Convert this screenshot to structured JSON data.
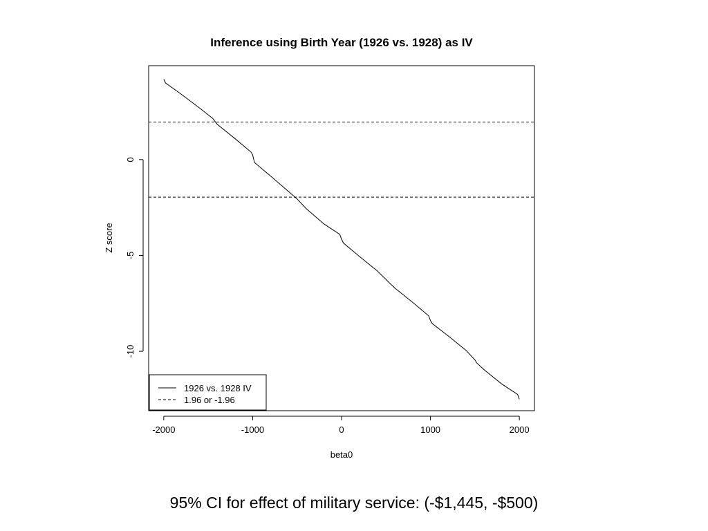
{
  "chart_data": {
    "type": "line",
    "title": "Inference using Birth Year (1926 vs. 1928) as IV",
    "xlabel": "beta0",
    "ylabel": "Z score",
    "xlim": [
      -2170,
      2170
    ],
    "ylim": [
      -13.1,
      4.9
    ],
    "x_ticks": [
      {
        "value": -2000,
        "label": "-2000"
      },
      {
        "value": -1000,
        "label": "-1000"
      },
      {
        "value": 0,
        "label": "0"
      },
      {
        "value": 1000,
        "label": "1000"
      },
      {
        "value": 2000,
        "label": "2000"
      }
    ],
    "y_ticks": [
      {
        "value": 0,
        "label": "0"
      },
      {
        "value": -5,
        "label": "-5"
      },
      {
        "value": -10,
        "label": "-10"
      }
    ],
    "grid": false,
    "series": [
      {
        "name": "1926 vs. 1928 IV",
        "style": "solid",
        "x": [
          -2000,
          -1980,
          -1800,
          -1600,
          -1450,
          -1400,
          -1200,
          -1020,
          -1000,
          -980,
          -800,
          -600,
          -500,
          -400,
          -200,
          -20,
          0,
          20,
          200,
          400,
          500,
          520,
          600,
          800,
          980,
          1000,
          1020,
          1200,
          1400,
          1500,
          1520,
          1600,
          1800,
          1980,
          2000
        ],
        "y": [
          4.2,
          4.0,
          3.4,
          2.7,
          2.15,
          1.85,
          1.1,
          0.4,
          0.25,
          -0.15,
          -0.85,
          -1.65,
          -2.05,
          -2.55,
          -3.35,
          -3.9,
          -4.15,
          -4.35,
          -5.05,
          -5.8,
          -6.25,
          -6.35,
          -6.7,
          -7.45,
          -8.15,
          -8.4,
          -8.55,
          -9.2,
          -9.95,
          -10.45,
          -10.6,
          -10.95,
          -11.7,
          -12.25,
          -12.5
        ]
      },
      {
        "name": "1.96 or -1.96",
        "style": "dashed",
        "hlines": [
          1.96,
          -1.96
        ]
      }
    ],
    "legend": {
      "position": "bottom-left",
      "entries": [
        {
          "label": "1926 vs. 1928 IV",
          "style": "solid"
        },
        {
          "label": "1.96 or -1.96",
          "style": "dashed"
        }
      ]
    },
    "line_color": "#000000"
  },
  "caption": "95% CI for effect of military service: (-$1,445, -$500)"
}
